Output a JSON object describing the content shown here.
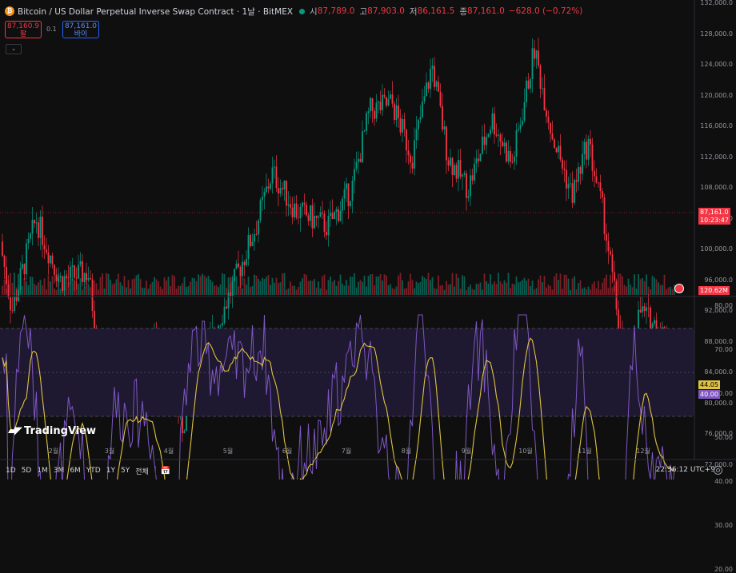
{
  "header": {
    "coin_icon": "bitcoin-icon",
    "title": "Bitcoin / US Dollar Perpetual Inverse Swap Contract · 1날 · BitMEX",
    "open_label": "시",
    "open_value": "87,789.0",
    "high_label": "고",
    "high_value": "87,903.0",
    "low_label": "저",
    "low_value": "86,161.5",
    "close_label": "종",
    "close_value": "87,161.0",
    "change": "−628.0 (−0.72%)",
    "status_color": "#089981"
  },
  "trade": {
    "sell_price": "87,160.9",
    "sell_label": "팔",
    "spread": "0.1",
    "buy_price": "87,161.0",
    "buy_label": "바이"
  },
  "price_axis": {
    "labels": [
      "132,000.0",
      "128,000.0",
      "124,000.0",
      "120,000.0",
      "116,000.0",
      "112,000.0",
      "108,000.0",
      "104,000.0",
      "100,000.0",
      "96,000.0",
      "92,000.0",
      "88,000.0",
      "84,000.0",
      "80,000.0",
      "76,000.0",
      "72,000.0"
    ],
    "current_price": "87,161.0",
    "countdown": "10:23:47",
    "volume": "120.62M"
  },
  "rsi_axis": {
    "labels": [
      "80.00",
      "70.00",
      "60.00",
      "50.00",
      "40.00",
      "30.00",
      "20.00"
    ],
    "rsi_ma_value": "44.05",
    "rsi_value": "40.00"
  },
  "time_axis": {
    "months": [
      "2월",
      "3월",
      "4월",
      "5월",
      "6월",
      "7월",
      "8월",
      "9월",
      "10월",
      "11월",
      "12월"
    ]
  },
  "bottom_bar": {
    "ranges": [
      "1D",
      "5D",
      "1M",
      "3M",
      "6M",
      "YTD",
      "1Y",
      "5Y",
      "전체"
    ],
    "clock": "22:36:12 UTC+9"
  },
  "logo": {
    "text": "TradingView"
  },
  "colors": {
    "up": "#089981",
    "down": "#f23645",
    "rsi_line": "#7e57c2",
    "rsi_ma": "#e0c341",
    "rsi_band": "#1e1830"
  }
}
